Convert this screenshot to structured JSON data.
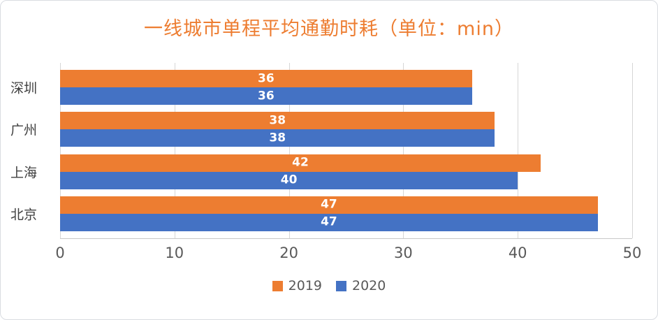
{
  "title": "一线城市单程平均通勤时耗（单位：min）",
  "colors": {
    "title": "#ED7D31",
    "series_2019": "#ED7D31",
    "series_2020": "#4472C4",
    "axis_text": "#595959",
    "category_text": "#404040",
    "gridline": "#D6D6D6"
  },
  "chart_data": {
    "type": "bar",
    "orientation": "horizontal",
    "title": "一线城市单程平均通勤时耗（单位：min）",
    "categories": [
      "深圳",
      "广州",
      "上海",
      "北京"
    ],
    "series": [
      {
        "name": "2019",
        "color": "#ED7D31",
        "values": [
          36,
          38,
          42,
          47
        ]
      },
      {
        "name": "2020",
        "color": "#4472C4",
        "values": [
          36,
          38,
          40,
          47
        ]
      }
    ],
    "xlabel": "",
    "ylabel": "",
    "xlim": [
      0,
      50
    ],
    "x_ticks": [
      0,
      10,
      20,
      30,
      40,
      50
    ],
    "grid": true,
    "data_labels": true,
    "legend_position": "bottom"
  }
}
